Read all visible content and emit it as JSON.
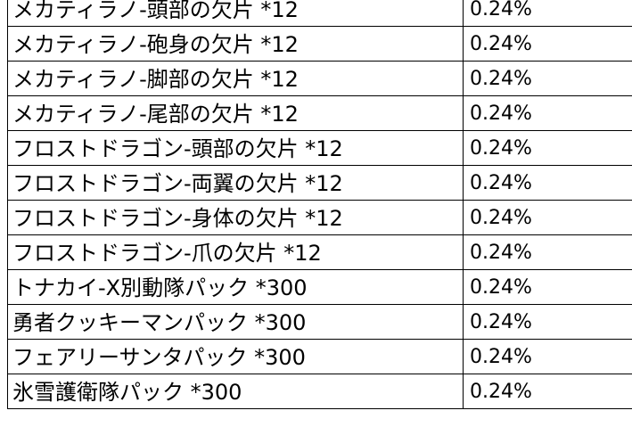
{
  "table": {
    "rows": [
      {
        "name": "メカティラノ-頭部の欠片 *12",
        "rate": "0.24%"
      },
      {
        "name": "メカティラノ-砲身の欠片 *12",
        "rate": "0.24%"
      },
      {
        "name": "メカティラノ-脚部の欠片 *12",
        "rate": "0.24%"
      },
      {
        "name": "メカティラノ-尾部の欠片 *12",
        "rate": "0.24%"
      },
      {
        "name": "フロストドラゴン-頭部の欠片 *12",
        "rate": "0.24%"
      },
      {
        "name": "フロストドラゴン-両翼の欠片 *12",
        "rate": "0.24%"
      },
      {
        "name": "フロストドラゴン-身体の欠片 *12",
        "rate": "0.24%"
      },
      {
        "name": "フロストドラゴン-爪の欠片 *12",
        "rate": "0.24%"
      },
      {
        "name": "トナカイ-X別動隊パック *300",
        "rate": "0.24%"
      },
      {
        "name": "勇者クッキーマンパック *300",
        "rate": "0.24%"
      },
      {
        "name": "フェアリーサンタパック *300",
        "rate": "0.24%"
      },
      {
        "name": "氷雪護衛隊パック *300",
        "rate": "0.24%"
      }
    ]
  }
}
